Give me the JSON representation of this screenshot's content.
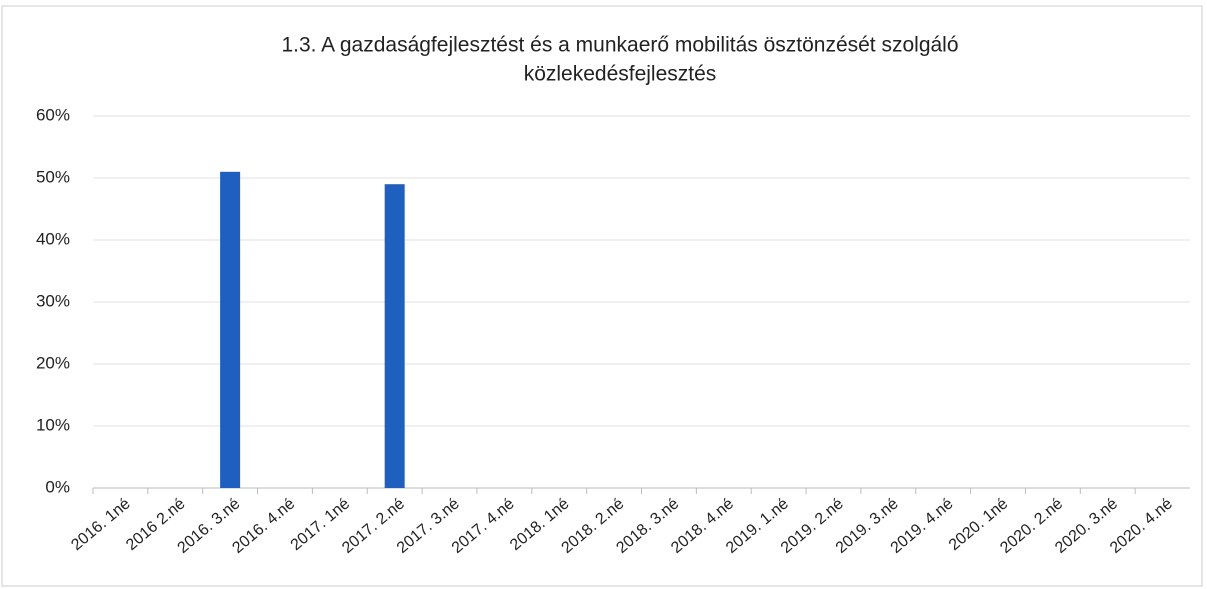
{
  "chart_data": {
    "type": "bar",
    "title": [
      "1.3. A gazdaságfejlesztést és a munkaerő mobilitás ösztönzését szolgáló",
      "közlekedésfejlesztés"
    ],
    "categories": [
      "2016. 1né",
      "2016 2.né",
      "2016. 3.né",
      "2016. 4.né",
      "2017. 1né",
      "2017. 2.né",
      "2017. 3.né",
      "2017. 4.né",
      "2018. 1né",
      "2018. 2.né",
      "2018. 3.né",
      "2018. 4.né",
      "2019. 1.né",
      "2019. 2.né",
      "2019. 3.né",
      "2019. 4.né",
      "2020. 1né",
      "2020. 2.né",
      "2020. 3.né",
      "2020. 4.né"
    ],
    "values": [
      0,
      0,
      51,
      0,
      0,
      49,
      0,
      0,
      0,
      0,
      0,
      0,
      0,
      0,
      0,
      0,
      0,
      0,
      0,
      0
    ],
    "color": "#1f5fbf",
    "ylim": [
      0,
      60
    ],
    "yticks": [
      {
        "value": 0,
        "label": "0%"
      },
      {
        "value": 10,
        "label": "10%"
      },
      {
        "value": 20,
        "label": "20%"
      },
      {
        "value": 30,
        "label": "30%"
      },
      {
        "value": 40,
        "label": "40%"
      },
      {
        "value": 50,
        "label": "50%"
      },
      {
        "value": 60,
        "label": "60%"
      }
    ],
    "grid": true
  }
}
